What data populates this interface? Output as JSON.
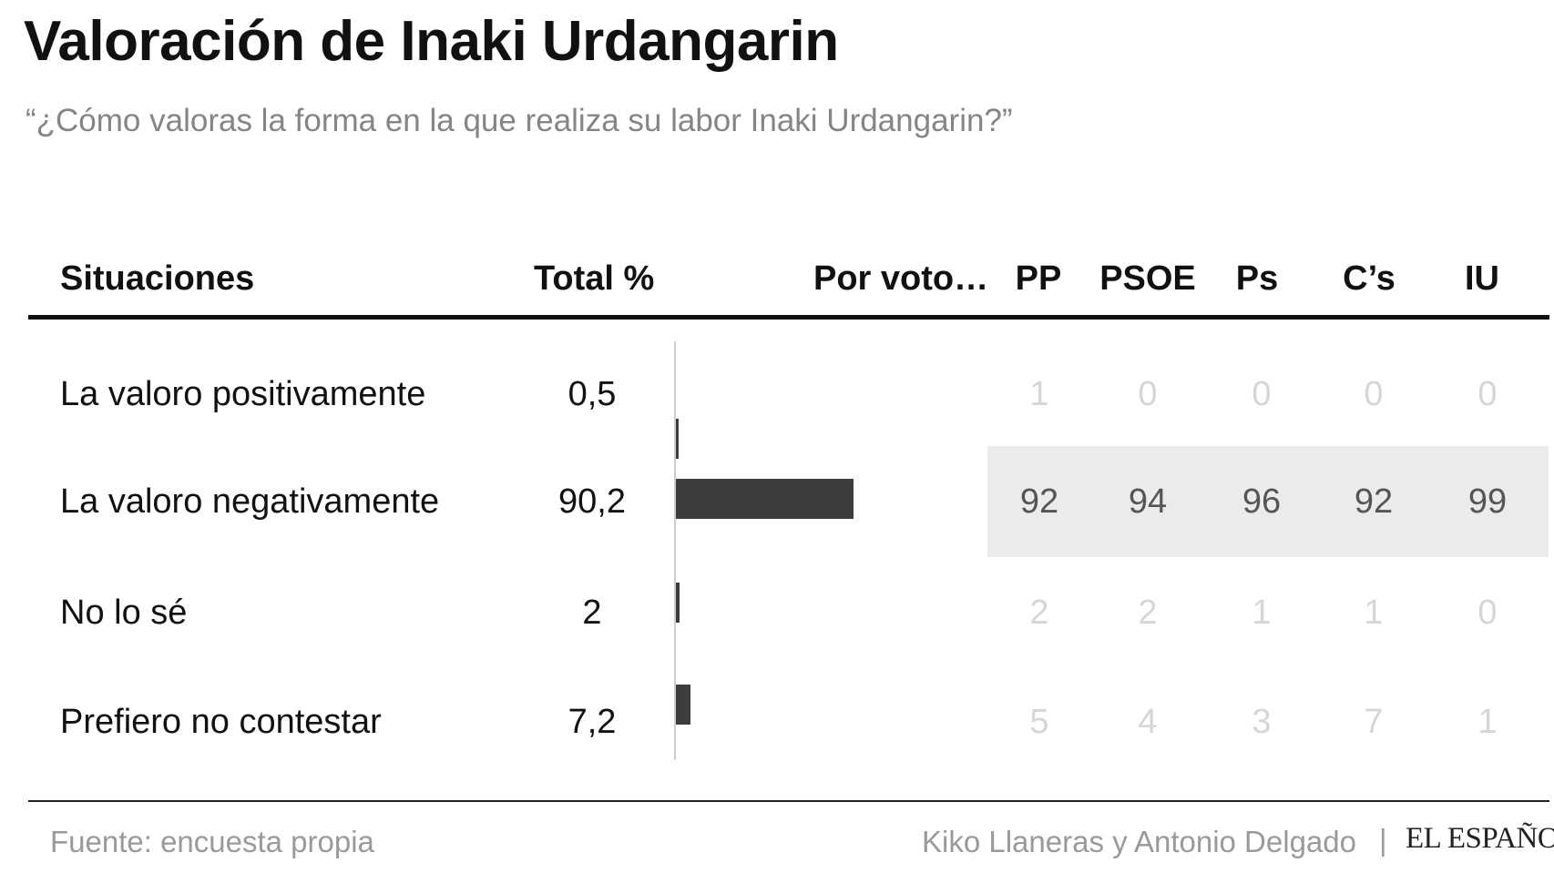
{
  "title": "Valoración de Inaki Urdangarin",
  "subtitle": "“¿Cómo valoras la forma en la que realiza su labor Inaki Urdangarin?”",
  "headers": {
    "situaciones": "Situaciones",
    "total": "Total %",
    "por_voto": "Por voto…",
    "parties": [
      "PP",
      "PSOE",
      "Ps",
      "C’s",
      "IU"
    ]
  },
  "footer": {
    "source": "Fuente: encuesta propia",
    "credits": "Kiko Llaneras y Antonio Delgado",
    "separator": "|",
    "brand": "EL ESPAÑOL"
  },
  "colors": {
    "bar": "#3d3d3d",
    "highlight_bg": "#ebebeb",
    "muted_text": "#d6d6d6",
    "highlight_text": "#555555"
  },
  "chart_data": {
    "type": "table",
    "bar_max": 100,
    "rows": [
      {
        "label": "La valoro positivamente",
        "total": "0,5",
        "value": 0.5,
        "parties": [
          "1",
          "0",
          "0",
          "0",
          "0"
        ],
        "highlight": false
      },
      {
        "label": "La valoro negativamente",
        "total": "90,2",
        "value": 90.2,
        "parties": [
          "92",
          "94",
          "96",
          "92",
          "99"
        ],
        "highlight": true
      },
      {
        "label": "No lo sé",
        "total": "2",
        "value": 2,
        "parties": [
          "2",
          "2",
          "1",
          "1",
          "0"
        ],
        "highlight": false
      },
      {
        "label": "Prefiero no contestar",
        "total": "7,2",
        "value": 7.2,
        "parties": [
          "5",
          "4",
          "3",
          "7",
          "1"
        ],
        "highlight": false
      }
    ]
  }
}
